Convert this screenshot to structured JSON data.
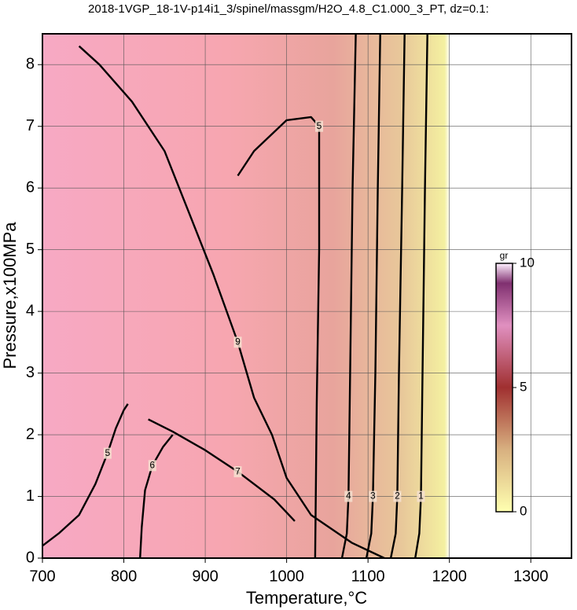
{
  "chart_data": {
    "type": "contour",
    "title": "2018-1VGP_18-1V-p14i1_3/spinel/massgm/H2O_4.8_C1.000_3_PT, dz=0.1:",
    "x_label": "Temperature,°C",
    "y_label": "Pressure,x100MPa",
    "xlim": [
      700,
      1350
    ],
    "ylim": [
      0,
      8.5
    ],
    "xticks": [
      700,
      800,
      900,
      1000,
      1100,
      1200,
      1300
    ],
    "yticks": [
      0,
      1,
      2,
      3,
      4,
      5,
      6,
      7,
      8
    ],
    "grid": true,
    "series": [
      {
        "level": 9,
        "x": [
          745,
          770,
          810,
          850,
          880,
          910,
          940,
          960,
          982,
          1000,
          1030,
          1080,
          1120
        ],
        "y": [
          8.3,
          8.0,
          7.4,
          6.6,
          5.6,
          4.6,
          3.5,
          2.6,
          2.0,
          1.3,
          0.7,
          0.25,
          0
        ]
      },
      {
        "level": 5,
        "x": [
          940,
          960,
          1000,
          1030,
          1040,
          1040,
          1037,
          1035
        ],
        "y": [
          6.2,
          6.6,
          7.1,
          7.15,
          7.0,
          5.0,
          2.5,
          0
        ]
      },
      {
        "level": 4,
        "x": [
          1085,
          1081,
          1078,
          1076,
          1074,
          1068
        ],
        "y": [
          8.5,
          6.0,
          3.0,
          1.0,
          0.4,
          0
        ]
      },
      {
        "level": 3,
        "x": [
          1115,
          1112,
          1109,
          1106,
          1104,
          1098
        ],
        "y": [
          8.5,
          6.0,
          3.0,
          1.0,
          0.4,
          0
        ]
      },
      {
        "level": 2,
        "x": [
          1145,
          1142,
          1138,
          1136,
          1134,
          1128
        ],
        "y": [
          8.5,
          6.0,
          3.0,
          1.0,
          0.4,
          0
        ]
      },
      {
        "level": 1,
        "x": [
          1173,
          1170,
          1167,
          1165,
          1163,
          1158
        ],
        "y": [
          8.5,
          6.0,
          3.0,
          1.0,
          0.4,
          0
        ]
      },
      {
        "level": 5,
        "x": [
          700,
          720,
          745,
          765,
          780,
          790,
          800,
          805
        ],
        "y": [
          0.2,
          0.4,
          0.7,
          1.2,
          1.7,
          2.1,
          2.4,
          2.5
        ]
      },
      {
        "level": 6,
        "x": [
          820,
          822,
          826,
          835,
          848,
          860
        ],
        "y": [
          0,
          0.5,
          1.1,
          1.5,
          1.8,
          2.0
        ]
      },
      {
        "level": 7,
        "x": [
          830,
          860,
          900,
          940,
          985,
          1010
        ],
        "y": [
          2.25,
          2.05,
          1.75,
          1.4,
          0.95,
          0.6
        ]
      }
    ],
    "colorbar": {
      "label": "gr",
      "lim": [
        0,
        10
      ],
      "ticks": [
        0,
        5,
        10
      ]
    }
  }
}
